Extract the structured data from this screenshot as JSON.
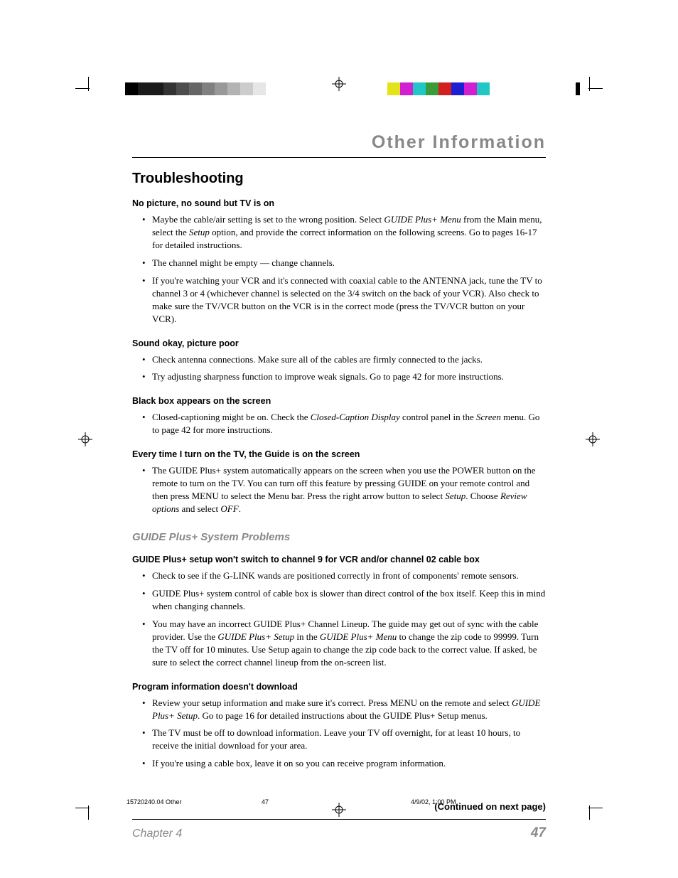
{
  "page": {
    "header_title": "Other Information",
    "main_heading": "Troubleshooting",
    "continued_text": "(Continued on next page)",
    "chapter_label": "Chapter 4",
    "page_number": "47"
  },
  "colors": {
    "accent_gray": "#888888",
    "text": "#000000",
    "rule": "#000000",
    "background": "#ffffff"
  },
  "printmarks": {
    "gray_steps": [
      "#000000",
      "#1a1a1a",
      "#1a1a1a",
      "#333333",
      "#4d4d4d",
      "#666666",
      "#808080",
      "#999999",
      "#b3b3b3",
      "#cccccc",
      "#e6e6e6",
      "#ffffff"
    ],
    "color_swatches": [
      "#e3e31a",
      "#d11fd1",
      "#1fc7c7",
      "#3a9b3a",
      "#d21f1f",
      "#1f1fd2",
      "#d11fd1",
      "#1fc7c7"
    ]
  },
  "sections": [
    {
      "heading": "No picture, no sound but TV is on",
      "items": [
        "Maybe the cable/air setting is set to the wrong position. Select <em>GUIDE Plus+ Menu</em> from the Main menu, select the <em>Setup</em> option, and provide the correct information on the following screens. Go to pages 16-17 for detailed instructions.",
        "The channel might be empty — change channels.",
        "If you're watching your VCR and it's connected with coaxial cable to the ANTENNA jack, tune the TV to channel 3 or 4 (whichever channel is selected on the 3/4 switch on the back of your VCR).  Also check to make sure the TV/VCR button on the VCR is in the correct mode (press the TV/VCR button on your VCR)."
      ]
    },
    {
      "heading": "Sound okay, picture poor",
      "items": [
        "Check antenna connections. Make sure all of the cables are firmly connected to the jacks.",
        "Try adjusting sharpness function to improve weak signals. Go to page 42 for more instructions."
      ]
    },
    {
      "heading": "Black box appears on the screen",
      "items": [
        "Closed-captioning might be on. Check the <em>Closed-Caption Display</em> control panel in the <em>Screen</em> menu. Go to page 42 for more instructions."
      ]
    },
    {
      "heading": "Every time I turn on the TV, the Guide is on the screen",
      "items": [
        "The GUIDE Plus+ system automatically appears on the screen when you use the POWER button on the remote to turn on the TV. You can turn off this feature by pressing GUIDE on your remote control and then press MENU to select the Menu bar. Press the right arrow button to select <em>Setup</em>. Choose <em>Review options</em> and select <em>OFF</em>."
      ]
    }
  ],
  "subsection_heading": "GUIDE Plus+ System Problems",
  "subsections": [
    {
      "heading": "GUIDE Plus+ setup won't switch to channel 9 for VCR and/or channel 02 cable box",
      "items": [
        "Check to see if the G-LINK wands are positioned correctly in front of components' remote sensors.",
        "GUIDE Plus+ system control of cable box is slower than direct control of the box itself. Keep this in mind when changing channels.",
        "You may have an incorrect GUIDE Plus+ Channel Lineup. The guide may get out of sync with the cable provider. Use the <em>GUIDE Plus+ Setup</em> in the <em>GUIDE Plus+ Menu</em> to change the zip code to 99999. Turn the TV off for 10 minutes. Use Setup again to change the zip code back to the correct value. If asked, be sure to select the correct channel lineup from the on-screen list."
      ]
    },
    {
      "heading": "Program information doesn't download",
      "items": [
        "Review your setup information and make sure it's correct. Press MENU on the remote and select <em>GUIDE Plus+ Setup</em>. Go to page 16 for detailed instructions about the GUIDE Plus+ Setup menus.",
        "The TV must be off to download information. Leave your TV off overnight, for at least 10 hours, to receive the initial download for your area.",
        "If you're using a cable box, leave it on so you can receive program information."
      ]
    }
  ],
  "slug": {
    "file": "15720240.04 Other",
    "page": "47",
    "datetime": "4/9/02, 1:00 PM"
  },
  "typography": {
    "header_title_fontsize": 25,
    "main_heading_fontsize": 20,
    "section_heading_fontsize": 12.5,
    "body_fontsize": 13,
    "subsection_heading_fontsize": 15,
    "chapter_fontsize": 16,
    "page_num_fontsize": 19,
    "slug_fontsize": 9,
    "body_font": "Garamond/serif",
    "heading_font": "Verdana/sans-serif"
  }
}
